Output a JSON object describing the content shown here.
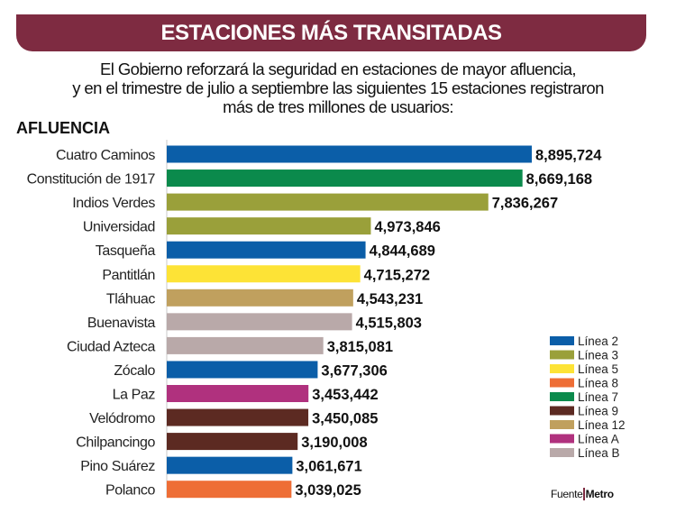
{
  "header": {
    "title": "ESTACIONES MÁS TRANSITADAS"
  },
  "subtitle": [
    "El Gobierno reforzará  la seguridad en estaciones de mayor afluencia,",
    "y en el trimestre de julio a septiembre las siguientes 15 estaciones registraron",
    "más de tres millones de usuarios:"
  ],
  "source": {
    "label": "Fuente",
    "name": "Metro"
  },
  "chart_data": {
    "type": "bar",
    "orientation": "horizontal",
    "ylabel": "AFLUENCIA",
    "categories": [
      "Cuatro Caminos",
      "Constitución de 1917",
      "Indios Verdes",
      "Universidad",
      "Tasqueña",
      "Pantitlán",
      "Tláhuac",
      "Buenavista",
      "Ciudad Azteca",
      "Zócalo",
      "La Paz",
      "Velódromo",
      "Chilpancingo",
      "Pino Suárez",
      "Polanco"
    ],
    "values": [
      8895724,
      8669168,
      7836267,
      4973846,
      4844689,
      4715272,
      4543231,
      4515803,
      3815081,
      3677306,
      3453442,
      3450085,
      3190008,
      3061671,
      3039025
    ],
    "value_labels": [
      "8,895,724",
      "8,669,168",
      "7,836,267",
      "4,973,846",
      "4,844,689",
      "4,715,272",
      "4,543,231",
      "4,515,803",
      "3,815,081",
      "3,677,306",
      "3,453,442",
      "3,450,085",
      "3,190,008",
      "3,061,671",
      "3,039,025"
    ],
    "line": [
      "Línea 2",
      "Línea 7",
      "Línea 3",
      "Línea 3",
      "Línea 2",
      "Línea 5",
      "Línea 12",
      "Línea B",
      "Línea B",
      "Línea 2",
      "Línea A",
      "Línea 9",
      "Línea 9",
      "Línea 2",
      "Línea 8"
    ],
    "xlim": [
      0,
      8895724
    ],
    "grid": false,
    "legend_position": "bottom-right",
    "legend": [
      {
        "name": "Línea 2",
        "color": "#0b5ea8"
      },
      {
        "name": "Línea 3",
        "color": "#9aa03a"
      },
      {
        "name": "Línea 5",
        "color": "#fde336"
      },
      {
        "name": "Línea 8",
        "color": "#ee6e36"
      },
      {
        "name": "Línea 7",
        "color": "#0b8a4c"
      },
      {
        "name": "Línea 9",
        "color": "#5c2a22"
      },
      {
        "name": "Línea 12",
        "color": "#c0a05e"
      },
      {
        "name": "Línea A",
        "color": "#b0317e"
      },
      {
        "name": "Línea B",
        "color": "#b9a9a9"
      }
    ]
  }
}
